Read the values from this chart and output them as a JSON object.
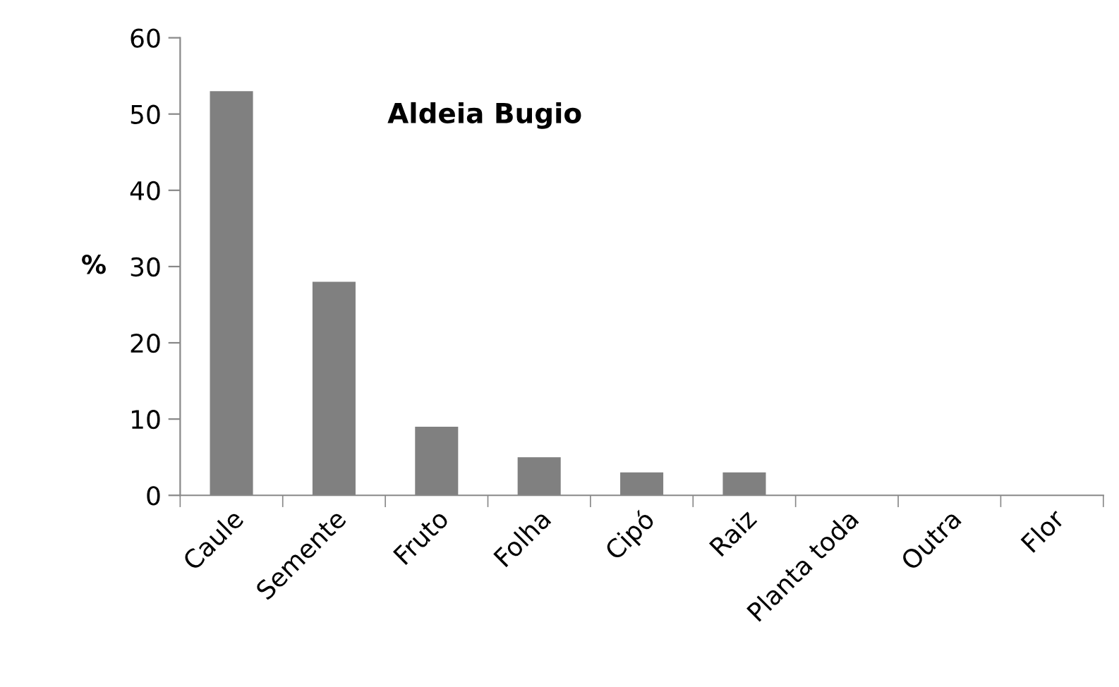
{
  "chart_data": {
    "type": "bar",
    "title": "Aldeia Bugio",
    "ylabel": "%",
    "categories": [
      "Caule",
      "Semente",
      "Fruto",
      "Folha",
      "Cipó",
      "Raiz",
      "Planta toda",
      "Outra",
      "Flor"
    ],
    "values": [
      53,
      28,
      9,
      5,
      3,
      3,
      0,
      0,
      0
    ],
    "color": "#808080",
    "ylim": [
      0,
      60
    ],
    "yticks": [
      0,
      10,
      20,
      30,
      40,
      50,
      60
    ],
    "grid": false
  }
}
